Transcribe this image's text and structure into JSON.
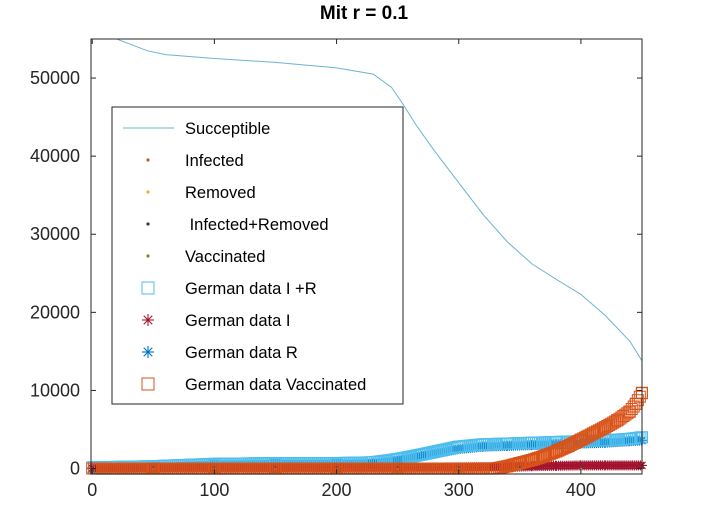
{
  "chart_data": {
    "type": "line",
    "title": "Mit r = 0.1",
    "xlabel": "",
    "ylabel": "",
    "xlim": [
      -1,
      450
    ],
    "ylim": [
      -700,
      55000
    ],
    "xticks": [
      0,
      100,
      200,
      300,
      400
    ],
    "yticks": [
      0,
      10000,
      20000,
      30000,
      40000,
      50000
    ],
    "xtick_labels": [
      "0",
      "100",
      "200",
      "300",
      "400"
    ],
    "ytick_labels": [
      "0",
      "10000",
      "20000",
      "30000",
      "40000",
      "50000"
    ],
    "legend_position": "upper-left",
    "series": [
      {
        "name": "Succeptible",
        "legend_label": "Succeptible",
        "style": "line",
        "color": "#6bb3d1",
        "x": [
          0,
          20,
          30,
          45,
          60,
          100,
          150,
          200,
          230,
          245,
          255,
          265,
          280,
          300,
          320,
          340,
          360,
          380,
          400,
          420,
          440,
          450
        ],
        "y": [
          55000,
          55000,
          54400,
          53500,
          53000,
          52500,
          52000,
          51300,
          50500,
          48800,
          46500,
          44000,
          40700,
          36600,
          32500,
          29000,
          26200,
          24200,
          22300,
          19600,
          16300,
          13800
        ]
      },
      {
        "name": "Infected",
        "legend_label": "Infected",
        "style": "dot",
        "color": "#d95319",
        "x": [
          0,
          50,
          100,
          150,
          200,
          250,
          300,
          350,
          400,
          450
        ],
        "y": [
          150,
          150,
          150,
          150,
          150,
          150,
          150,
          150,
          150,
          150
        ]
      },
      {
        "name": "Removed",
        "legend_label": "Removed",
        "style": "dot",
        "color": "#edb120",
        "x": [
          0,
          50,
          100,
          150,
          200,
          250,
          300,
          350,
          400,
          450
        ],
        "y": [
          0,
          0,
          0,
          0,
          0,
          0,
          0,
          0,
          0,
          0
        ]
      },
      {
        "name": "Infected+Removed",
        "legend_label": " Infected+Removed",
        "style": "dot",
        "color": "#4a2a5a",
        "x": [
          0,
          50,
          100,
          150,
          200,
          250,
          300,
          350,
          400,
          450
        ],
        "y": [
          150,
          150,
          150,
          150,
          150,
          150,
          150,
          150,
          150,
          150
        ]
      },
      {
        "name": "Vaccinated",
        "legend_label": "Vaccinated",
        "style": "dot",
        "color": "#7e8b2a",
        "x": [
          0,
          50,
          100,
          150,
          200,
          250,
          300,
          350,
          400,
          450
        ],
        "y": [
          0,
          0,
          0,
          0,
          0,
          0,
          0,
          0,
          0,
          0
        ]
      },
      {
        "name": "German data I +R",
        "legend_label": "German data I +R",
        "style": "square-marker",
        "color": "#4dbeee",
        "x": [
          0,
          50,
          100,
          150,
          200,
          230,
          250,
          270,
          300,
          320,
          340,
          360,
          380,
          400,
          420,
          440,
          450
        ],
        "y": [
          150,
          300,
          600,
          700,
          700,
          800,
          1200,
          1800,
          2800,
          3100,
          3200,
          3300,
          3400,
          3500,
          3600,
          3800,
          4000
        ]
      },
      {
        "name": "German data I",
        "legend_label": "German data I",
        "style": "asterisk-marker",
        "color": "#a2142f",
        "x": [
          0,
          50,
          100,
          150,
          200,
          250,
          300,
          340,
          360,
          380,
          400,
          420,
          450
        ],
        "y": [
          50,
          60,
          80,
          80,
          80,
          100,
          150,
          200,
          300,
          350,
          400,
          400,
          400
        ]
      },
      {
        "name": "German data R",
        "legend_label": "German data R",
        "style": "asterisk-marker",
        "color": "#0072bd",
        "x": [
          0,
          50,
          100,
          150,
          200,
          230,
          250,
          270,
          300,
          320,
          340,
          360,
          380,
          400,
          420,
          440,
          450
        ],
        "y": [
          0,
          200,
          500,
          600,
          600,
          700,
          1000,
          1600,
          2500,
          2800,
          2900,
          3000,
          3100,
          3200,
          3300,
          3500,
          3600
        ]
      },
      {
        "name": "German data Vaccinated",
        "legend_label": "German data Vaccinated",
        "style": "square-marker",
        "color": "#d95319",
        "x": [
          0,
          50,
          100,
          150,
          200,
          250,
          300,
          330,
          340,
          350,
          360,
          370,
          380,
          390,
          400,
          410,
          420,
          430,
          440,
          445,
          450
        ],
        "y": [
          0,
          0,
          0,
          0,
          0,
          0,
          0,
          0,
          300,
          700,
          1100,
          1600,
          2200,
          2900,
          3700,
          4500,
          5300,
          6200,
          7300,
          8300,
          9700
        ]
      }
    ]
  }
}
